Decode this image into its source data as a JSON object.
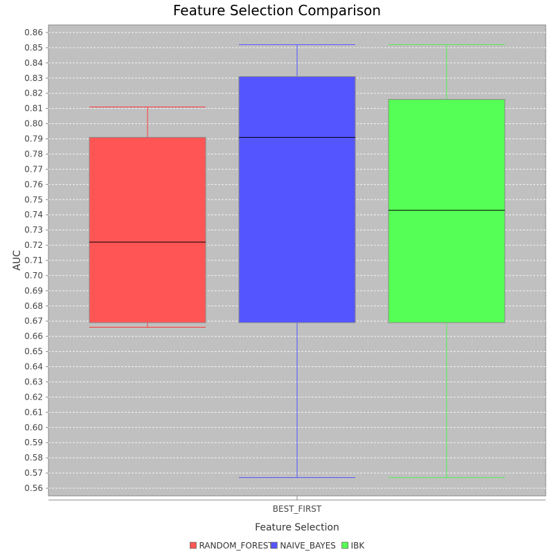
{
  "chart_data": {
    "type": "boxplot",
    "title": "Feature Selection Comparison",
    "xlabel": "Feature Selection",
    "ylabel": "AUC",
    "categories": [
      "BEST_FIRST"
    ],
    "ylim": [
      0.555,
      0.865
    ],
    "yticks": [
      "0.56",
      "0.57",
      "0.58",
      "0.59",
      "0.60",
      "0.61",
      "0.62",
      "0.63",
      "0.64",
      "0.65",
      "0.66",
      "0.67",
      "0.68",
      "0.69",
      "0.70",
      "0.71",
      "0.72",
      "0.73",
      "0.74",
      "0.75",
      "0.76",
      "0.77",
      "0.78",
      "0.79",
      "0.80",
      "0.81",
      "0.82",
      "0.83",
      "0.84",
      "0.85",
      "0.86"
    ],
    "grid": true,
    "legend_position": "bottom",
    "series": [
      {
        "name": "RANDOM_FOREST",
        "color": "#ff5555",
        "stroke": "#ff3333",
        "min": 0.666,
        "q1": 0.669,
        "median": 0.722,
        "q3": 0.791,
        "max": 0.811
      },
      {
        "name": "NAIVE_BAYES",
        "color": "#5555ff",
        "stroke": "#5555ff",
        "min": 0.567,
        "q1": 0.669,
        "median": 0.791,
        "q3": 0.831,
        "max": 0.852
      },
      {
        "name": "IBK",
        "color": "#55ff55",
        "stroke": "#55ee55",
        "min": 0.567,
        "q1": 0.669,
        "median": 0.743,
        "q3": 0.816,
        "max": 0.852
      }
    ]
  }
}
